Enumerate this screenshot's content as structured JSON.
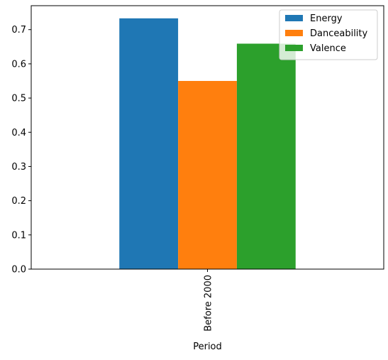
{
  "chart_data": {
    "type": "bar",
    "categories": [
      "Before 2000"
    ],
    "series": [
      {
        "name": "Energy",
        "values": [
          0.733
        ],
        "color": "#1f77b4"
      },
      {
        "name": "Danceability",
        "values": [
          0.55
        ],
        "color": "#ff7f0e"
      },
      {
        "name": "Valence",
        "values": [
          0.659
        ],
        "color": "#2ca02c"
      }
    ],
    "xlabel": "Period",
    "ylabel": "",
    "title": "",
    "ylim": [
      0,
      0.77
    ],
    "yticks": [
      0.0,
      0.1,
      0.2,
      0.3,
      0.4,
      0.5,
      0.6,
      0.7
    ],
    "ytick_labels": [
      "0.0",
      "0.1",
      "0.2",
      "0.3",
      "0.4",
      "0.5",
      "0.6",
      "0.7"
    ],
    "grid": false,
    "legend_position": "top-right"
  }
}
